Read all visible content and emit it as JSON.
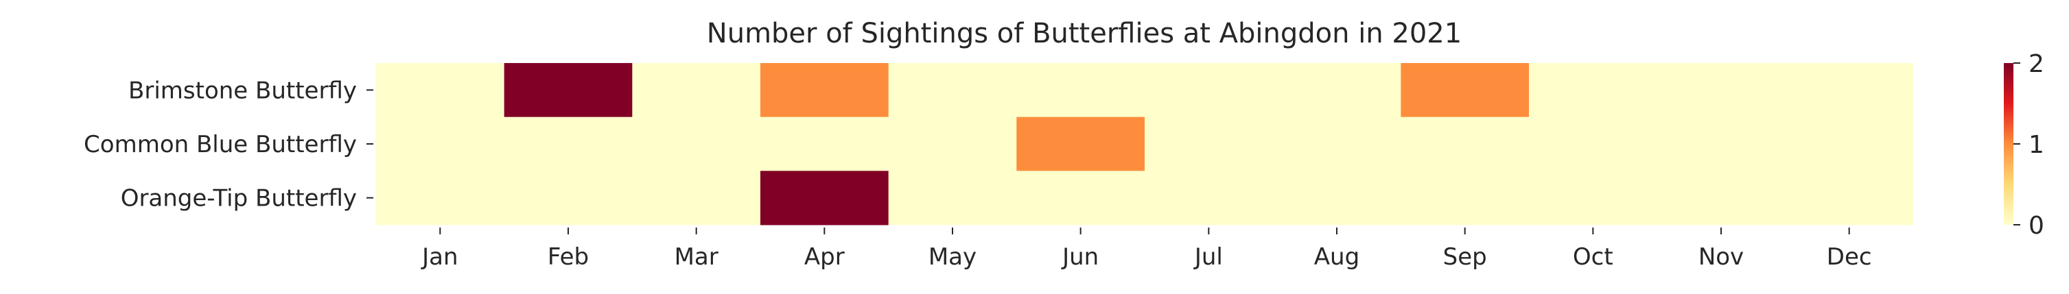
{
  "chart_data": {
    "type": "heatmap",
    "title": "Number of Sightings of Butterflies at Abingdon in 2021",
    "xlabel": "",
    "ylabel": "",
    "x_categories": [
      "Jan",
      "Feb",
      "Mar",
      "Apr",
      "May",
      "Jun",
      "Jul",
      "Aug",
      "Sep",
      "Oct",
      "Nov",
      "Dec"
    ],
    "y_categories": [
      "Brimstone Butterfly",
      "Common Blue Butterfly",
      "Orange-Tip Butterfly"
    ],
    "values": [
      [
        0,
        2,
        0,
        1,
        0,
        0,
        0,
        0,
        1,
        0,
        0,
        0
      ],
      [
        0,
        0,
        0,
        0,
        0,
        1,
        0,
        0,
        0,
        0,
        0,
        0
      ],
      [
        0,
        0,
        0,
        2,
        0,
        0,
        0,
        0,
        0,
        0,
        0,
        0
      ]
    ],
    "colorbar": {
      "range": [
        0,
        2
      ],
      "ticks": [
        "0",
        "1",
        "2"
      ],
      "colormap": "YlOrRd",
      "colors": {
        "low": "#ffffcc",
        "mid": "#fd8d3c",
        "high": "#800026"
      }
    },
    "grid": false
  }
}
